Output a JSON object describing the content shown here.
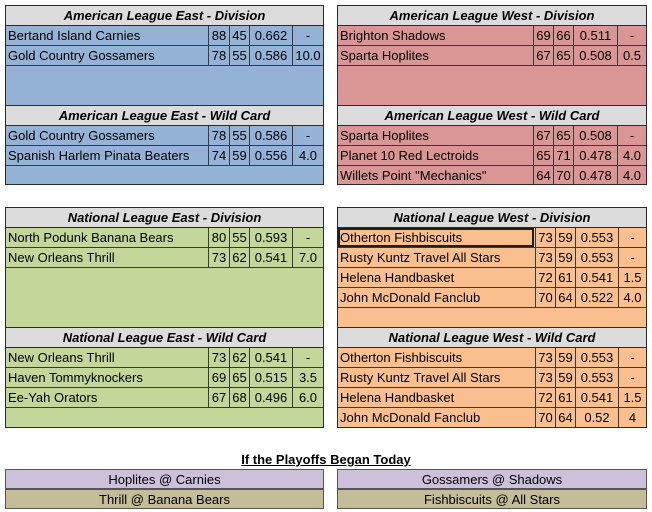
{
  "panels": {
    "al": {
      "division": {
        "title": "American League East - Division",
        "rows": [
          {
            "team": "Bertand Island Carnies",
            "w": "88",
            "l": "45",
            "pct": "0.662",
            "gb": "-"
          },
          {
            "team": "Gold Country Gossamers",
            "w": "78",
            "l": "55",
            "pct": "0.586",
            "gb": "10.0"
          }
        ]
      },
      "wildcard": {
        "title": "American League East - Wild Card",
        "rows": [
          {
            "team": "Gold Country Gossamers",
            "w": "78",
            "l": "55",
            "pct": "0.586",
            "gb": "-"
          },
          {
            "team": "Spanish Harlem Pinata Beaters",
            "w": "74",
            "l": "59",
            "pct": "0.556",
            "gb": "4.0"
          }
        ]
      }
    },
    "alw": {
      "division": {
        "title": "American League West - Division",
        "rows": [
          {
            "team": "Brighton Shadows",
            "w": "69",
            "l": "66",
            "pct": "0.511",
            "gb": "-"
          },
          {
            "team": "Sparta Hoplites",
            "w": "67",
            "l": "65",
            "pct": "0.508",
            "gb": "0.5"
          }
        ]
      },
      "wildcard": {
        "title": "American League West - Wild Card",
        "rows": [
          {
            "team": "Sparta Hoplites",
            "w": "67",
            "l": "65",
            "pct": "0.508",
            "gb": "-"
          },
          {
            "team": "Planet 10 Red Lectroids",
            "w": "65",
            "l": "71",
            "pct": "0.478",
            "gb": "4.0"
          },
          {
            "team": "Willets Point \"Mechanics\"",
            "w": "64",
            "l": "70",
            "pct": "0.478",
            "gb": "4.0"
          }
        ]
      }
    },
    "nle": {
      "division": {
        "title": "National League East - Division",
        "rows": [
          {
            "team": "North Podunk Banana Bears",
            "w": "80",
            "l": "55",
            "pct": "0.593",
            "gb": "-"
          },
          {
            "team": "New Orleans Thrill",
            "w": "73",
            "l": "62",
            "pct": "0.541",
            "gb": "7.0"
          }
        ]
      },
      "wildcard": {
        "title": "National League East - Wild Card",
        "rows": [
          {
            "team": "New Orleans Thrill",
            "w": "73",
            "l": "62",
            "pct": "0.541",
            "gb": "-"
          },
          {
            "team": "Haven Tommyknockers",
            "w": "69",
            "l": "65",
            "pct": "0.515",
            "gb": "3.5"
          },
          {
            "team": "Ee-Yah Orators",
            "w": "67",
            "l": "68",
            "pct": "0.496",
            "gb": "6.0"
          }
        ]
      }
    },
    "nlw": {
      "division": {
        "title": "National League West - Division",
        "rows": [
          {
            "team": "Otherton Fishbiscuits",
            "w": "73",
            "l": "59",
            "pct": "0.553",
            "gb": "-"
          },
          {
            "team": "Rusty Kuntz Travel All Stars",
            "w": "73",
            "l": "59",
            "pct": "0.553",
            "gb": "-"
          },
          {
            "team": "Helena Handbasket",
            "w": "72",
            "l": "61",
            "pct": "0.541",
            "gb": "1.5"
          },
          {
            "team": "John McDonald Fanclub",
            "w": "70",
            "l": "64",
            "pct": "0.522",
            "gb": "4.0"
          }
        ]
      },
      "wildcard": {
        "title": "National League West - Wild Card",
        "rows": [
          {
            "team": "Otherton Fishbiscuits",
            "w": "73",
            "l": "59",
            "pct": "0.553",
            "gb": "-"
          },
          {
            "team": "Rusty Kuntz Travel All Stars",
            "w": "73",
            "l": "59",
            "pct": "0.553",
            "gb": "-"
          },
          {
            "team": "Helena Handbasket",
            "w": "72",
            "l": "61",
            "pct": "0.541",
            "gb": "1.5"
          },
          {
            "team": "John McDonald Fanclub",
            "w": "70",
            "l": "64",
            "pct": "0.52",
            "gb": "4"
          }
        ]
      }
    }
  },
  "playoffs": {
    "title": "If the Playoffs Began Today",
    "matchups": [
      "Hoplites @ Carnies",
      "Gossamers @ Shadows",
      "Thrill @ Banana Bears",
      "Fishbiscuits @ All Stars"
    ]
  },
  "colors": {
    "american_east": "#95b3d7",
    "american_west": "#da9694",
    "national_east": "#c4d79b",
    "national_west": "#fabf8f",
    "header": "#dcdcdc",
    "playoff_al": "#ccc0da",
    "playoff_nl": "#c4bd97"
  }
}
